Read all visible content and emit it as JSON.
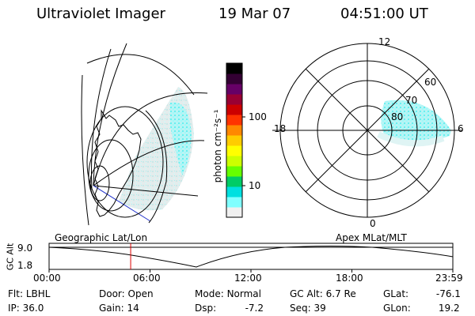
{
  "header": {
    "instrument": "Ultraviolet Imager",
    "date": "19 Mar 07",
    "time": "04:51:00 UT"
  },
  "colorbar": {
    "unit_label": "photon cm⁻²s⁻¹",
    "ticks": [
      {
        "label": "100",
        "value": 100
      },
      {
        "label": "10",
        "value": 10
      }
    ],
    "colors": [
      "#f0f0f0",
      "#80ffff",
      "#00e0e0",
      "#00cc66",
      "#66ff00",
      "#ccff00",
      "#ffff00",
      "#ffcc00",
      "#ff8800",
      "#ff3300",
      "#cc0000",
      "#990033",
      "#660066",
      "#330033",
      "#000000"
    ]
  },
  "polar_plot": {
    "mlt_labels": [
      {
        "label": "12",
        "pos": "top"
      },
      {
        "label": "18",
        "pos": "left"
      },
      {
        "label": "6",
        "pos": "right"
      },
      {
        "label": "0",
        "pos": "bottom"
      }
    ],
    "lat_labels": [
      "60",
      "70",
      "80"
    ]
  },
  "timeline": {
    "left_caption": "Geographic Lat/Lon",
    "right_caption": "Apex MLat/MLT",
    "axis_label": "GC Alt",
    "y_ticks": [
      "9.0",
      "1.8"
    ],
    "x_ticks": [
      "00:00",
      "06:00",
      "12:00",
      "18:00",
      "23:59"
    ],
    "current_time_hours": 4.85,
    "current_marker_color": "#dd0000"
  },
  "status": {
    "row1": [
      {
        "label": "Flt:",
        "value": "LBHL"
      },
      {
        "label": "Door:",
        "value": "Open"
      },
      {
        "label": "Mode:",
        "value": "Normal"
      },
      {
        "label": "GC Alt:",
        "value": "6.7 Re"
      },
      {
        "label": "GLat:",
        "value": "-76.1"
      }
    ],
    "row2": [
      {
        "label": "IP:",
        "value": "36.0"
      },
      {
        "label": "Gain:",
        "value": "14"
      },
      {
        "label": "Dsp:",
        "value": "-7.2"
      },
      {
        "label": "Seq:",
        "value": "39"
      },
      {
        "label": "GLon:",
        "value": "19.2"
      }
    ]
  }
}
